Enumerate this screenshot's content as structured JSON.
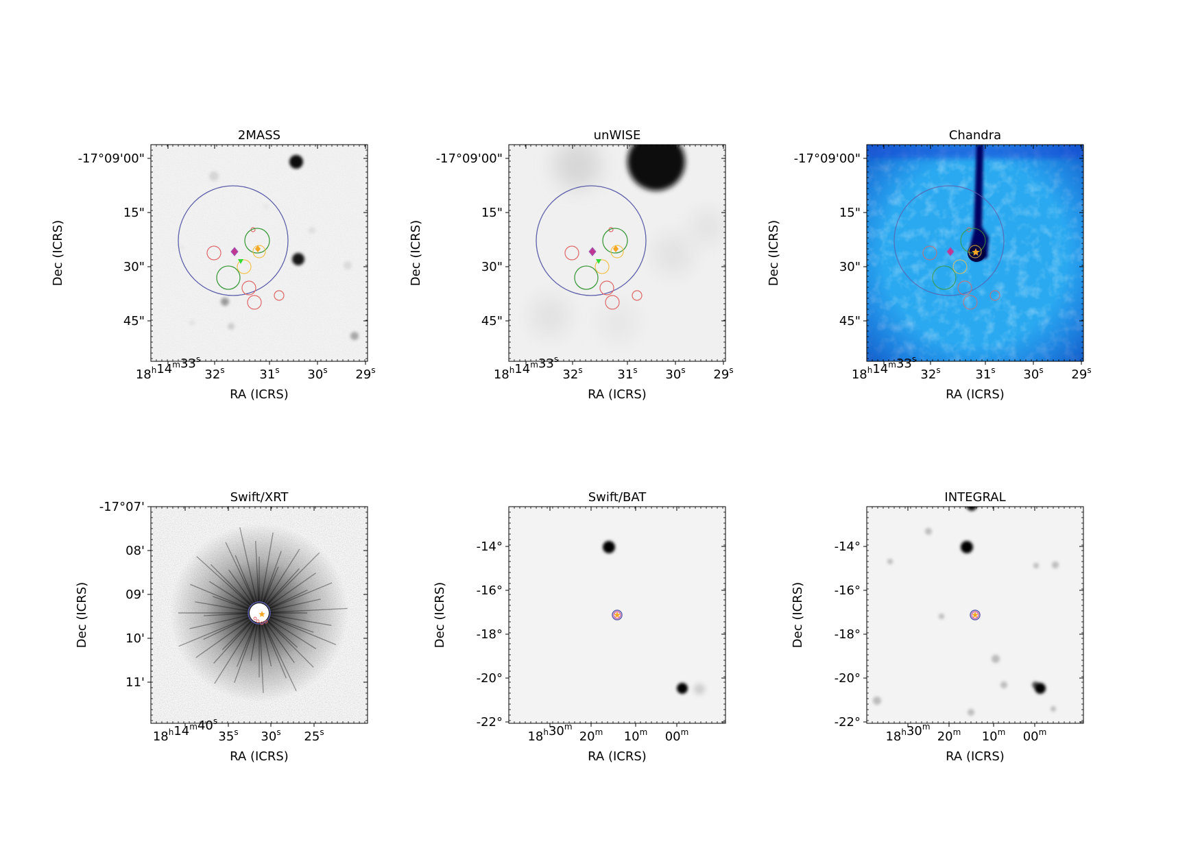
{
  "figure": {
    "panels": [
      {
        "id": "p2mass",
        "title": "2MASS",
        "xlabel": "RA (ICRS)",
        "ylabel": "Dec (ICRS)",
        "background": "gray",
        "yticks": [
          "-17°09'00\"",
          "15\"",
          "30\"",
          "45\""
        ],
        "xticks": [
          {
            "h": "18",
            "hu": "h",
            "m": "14",
            "mu": "m",
            "s": "33",
            "su": "s"
          },
          {
            "s": "32",
            "su": "s"
          },
          {
            "s": "31",
            "su": "s"
          },
          {
            "s": "30",
            "su": "s"
          },
          {
            "s": "29",
            "su": "s"
          }
        ]
      },
      {
        "id": "punwise",
        "title": "unWISE",
        "xlabel": "RA (ICRS)",
        "ylabel": "Dec (ICRS)",
        "background": "gray",
        "yticks": [
          "-17°09'00\"",
          "15\"",
          "30\"",
          "45\""
        ],
        "xticks": [
          {
            "h": "18",
            "hu": "h",
            "m": "14",
            "mu": "m",
            "s": "33",
            "su": "s"
          },
          {
            "s": "32",
            "su": "s"
          },
          {
            "s": "31",
            "su": "s"
          },
          {
            "s": "30",
            "su": "s"
          },
          {
            "s": "29",
            "su": "s"
          }
        ]
      },
      {
        "id": "pchandra",
        "title": "Chandra",
        "xlabel": "RA (ICRS)",
        "ylabel": "Dec (ICRS)",
        "background": "blue",
        "yticks": [
          "-17°09'00\"",
          "15\"",
          "30\"",
          "45\""
        ],
        "xticks": [
          {
            "h": "18",
            "hu": "h",
            "m": "14",
            "mu": "m",
            "s": "33",
            "su": "s"
          },
          {
            "s": "32",
            "su": "s"
          },
          {
            "s": "31",
            "su": "s"
          },
          {
            "s": "30",
            "su": "s"
          },
          {
            "s": "29",
            "su": "s"
          }
        ]
      },
      {
        "id": "pxrt",
        "title": "Swift/XRT",
        "xlabel": "RA (ICRS)",
        "ylabel": "Dec (ICRS)",
        "background": "gray",
        "yticks": [
          "-17°07'",
          "08'",
          "09'",
          "10'",
          "11'"
        ],
        "xticks": [
          {
            "h": "18",
            "hu": "h",
            "m": "14",
            "mu": "m",
            "s": "40",
            "su": "s"
          },
          {
            "s": "35",
            "su": "s"
          },
          {
            "s": "30",
            "su": "s"
          },
          {
            "s": "25",
            "su": "s"
          }
        ]
      },
      {
        "id": "pbat",
        "title": "Swift/BAT",
        "xlabel": "RA (ICRS)",
        "ylabel": "Dec (ICRS)",
        "background": "gray",
        "yticks": [
          "-14°",
          "-16°",
          "-18°",
          "-20°",
          "-22°"
        ],
        "xticks": [
          {
            "h": "18",
            "hu": "h",
            "m": "30",
            "mu": "m"
          },
          {
            "m": "20",
            "mu": "m"
          },
          {
            "m": "10",
            "mu": "m"
          },
          {
            "m": "00",
            "mu": "m"
          }
        ]
      },
      {
        "id": "pintegral",
        "title": "INTEGRAL",
        "xlabel": "RA (ICRS)",
        "ylabel": "Dec (ICRS)",
        "background": "gray",
        "yticks": [
          "-14°",
          "-16°",
          "-18°",
          "-20°",
          "-22°"
        ],
        "xticks": [
          {
            "h": "18",
            "hu": "h",
            "m": "30",
            "mu": "m"
          },
          {
            "m": "20",
            "mu": "m"
          },
          {
            "m": "10",
            "mu": "m"
          },
          {
            "m": "00",
            "mu": "m"
          }
        ]
      }
    ],
    "colors": {
      "uncertainty_circle": "#5d5dab",
      "red_marker": "#e06666",
      "green_marker": "#3c9a3c",
      "yellow_marker": "#f2c14e",
      "star_marker": "#f5a623",
      "magenta_marker": "#c2378f",
      "xrt_fov": "#66e066",
      "chandra_bg": "#2aa9f0"
    },
    "icons": [
      "star-marker-icon",
      "triangle-marker-icon",
      "diamond-marker-icon"
    ]
  }
}
